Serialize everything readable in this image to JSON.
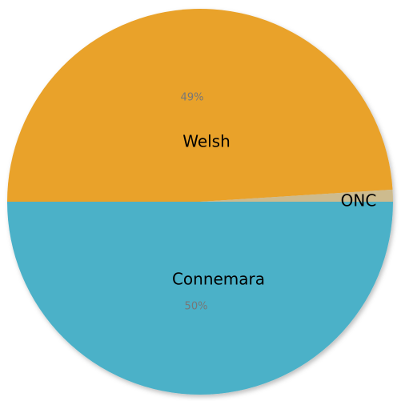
{
  "chart_data": {
    "type": "pie",
    "categories": [
      "Welsh",
      "ONC",
      "Connemara"
    ],
    "values": [
      49,
      1,
      50
    ],
    "value_labels": [
      "49%",
      null,
      "50%"
    ],
    "colors": [
      "#e9a22b",
      "#cdbb8e",
      "#4bb1c8"
    ]
  }
}
